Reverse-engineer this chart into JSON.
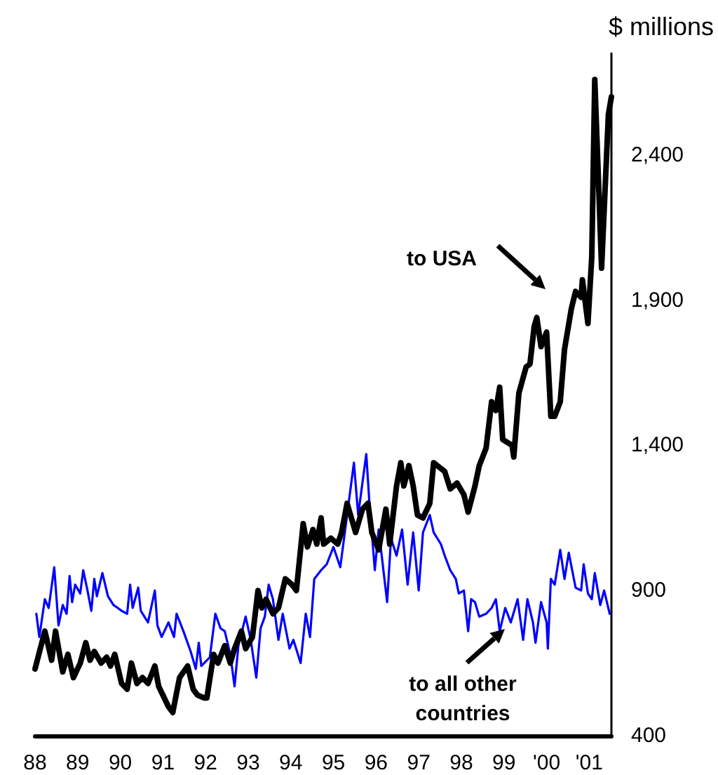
{
  "chart_data": {
    "type": "line",
    "ylabel": "$ millions",
    "marker": "none",
    "line_style": "solid",
    "xlim": [
      1988,
      2001.52
    ],
    "ylim": [
      400,
      2750
    ],
    "xticks": [
      {
        "value": 1988,
        "label": "88"
      },
      {
        "value": 1989,
        "label": "89"
      },
      {
        "value": 1990,
        "label": "90"
      },
      {
        "value": 1991,
        "label": "91"
      },
      {
        "value": 1992,
        "label": "92"
      },
      {
        "value": 1993,
        "label": "93"
      },
      {
        "value": 1994,
        "label": "94"
      },
      {
        "value": 1995,
        "label": "95"
      },
      {
        "value": 1996,
        "label": "96"
      },
      {
        "value": 1997,
        "label": "97"
      },
      {
        "value": 1998,
        "label": "98"
      },
      {
        "value": 1999,
        "label": "99"
      },
      {
        "value": 2000,
        "label": "'00"
      },
      {
        "value": 2001,
        "label": "'01"
      }
    ],
    "yticks": [
      {
        "value": 400,
        "label": "400"
      },
      {
        "value": 900,
        "label": "900"
      },
      {
        "value": 1400,
        "label": "1,400"
      },
      {
        "value": 1900,
        "label": "1,900"
      },
      {
        "value": 2400,
        "label": "2,400"
      }
    ],
    "series": [
      {
        "name": "to USA",
        "color": "#000000",
        "x": [
          1988.0,
          1988.23,
          1988.39,
          1988.48,
          1988.65,
          1988.77,
          1988.9,
          1989.06,
          1989.19,
          1989.29,
          1989.39,
          1989.55,
          1989.68,
          1989.77,
          1989.87,
          1990.03,
          1990.16,
          1990.26,
          1990.39,
          1990.52,
          1990.65,
          1990.81,
          1990.9,
          1991.13,
          1991.23,
          1991.39,
          1991.58,
          1991.71,
          1991.81,
          1991.97,
          1992.03,
          1992.19,
          1992.29,
          1992.45,
          1992.58,
          1992.68,
          1992.84,
          1992.94,
          1993.1,
          1993.23,
          1993.32,
          1993.42,
          1993.58,
          1993.71,
          1993.87,
          1994.03,
          1994.13,
          1994.29,
          1994.39,
          1994.52,
          1994.61,
          1994.71,
          1994.77,
          1994.94,
          1995.1,
          1995.19,
          1995.32,
          1995.42,
          1995.52,
          1995.68,
          1995.81,
          1995.9,
          1996.06,
          1996.23,
          1996.32,
          1996.48,
          1996.58,
          1996.65,
          1996.77,
          1996.87,
          1996.97,
          1997.1,
          1997.26,
          1997.35,
          1997.61,
          1997.74,
          1997.9,
          1998.06,
          1998.16,
          1998.32,
          1998.42,
          1998.58,
          1998.71,
          1998.81,
          1998.9,
          1998.97,
          1999.19,
          1999.23,
          1999.35,
          1999.52,
          1999.61,
          1999.71,
          1999.77,
          1999.87,
          2000.0,
          2000.1,
          2000.19,
          2000.32,
          2000.42,
          2000.58,
          2000.68,
          2000.81,
          2000.84,
          2000.97,
          2001.06,
          2001.13,
          2001.23,
          2001.29,
          2001.45,
          2001.52
        ],
        "values": [
          630,
          760,
          660,
          760,
          620,
          680,
          600,
          650,
          720,
          660,
          690,
          650,
          670,
          640,
          680,
          580,
          560,
          650,
          580,
          600,
          580,
          640,
          570,
          500,
          480,
          600,
          640,
          560,
          540,
          530,
          530,
          680,
          650,
          710,
          650,
          700,
          760,
          700,
          740,
          900,
          840,
          870,
          820,
          840,
          940,
          920,
          900,
          1130,
          1050,
          1110,
          1060,
          1150,
          1060,
          1080,
          1060,
          1100,
          1200,
          1150,
          1100,
          1180,
          1200,
          1100,
          1040,
          1180,
          1060,
          1260,
          1340,
          1260,
          1330,
          1260,
          1160,
          1150,
          1200,
          1340,
          1310,
          1250,
          1270,
          1230,
          1170,
          1260,
          1330,
          1390,
          1550,
          1520,
          1600,
          1420,
          1400,
          1360,
          1580,
          1670,
          1680,
          1810,
          1840,
          1740,
          1790,
          1500,
          1500,
          1550,
          1730,
          1870,
          1930,
          1910,
          1970,
          1820,
          2050,
          2660,
          2260,
          2010,
          2540,
          2600
        ]
      },
      {
        "name": "to all other countries",
        "color": "#0000ff",
        "x": [
          1988.03,
          1988.1,
          1988.23,
          1988.32,
          1988.45,
          1988.55,
          1988.65,
          1988.74,
          1988.81,
          1988.87,
          1988.94,
          1989.06,
          1989.13,
          1989.23,
          1989.32,
          1989.39,
          1989.45,
          1989.58,
          1989.71,
          1989.84,
          1989.94,
          1990.03,
          1990.16,
          1990.23,
          1990.29,
          1990.42,
          1990.48,
          1990.65,
          1990.81,
          1990.87,
          1990.97,
          1991.13,
          1991.26,
          1991.32,
          1991.48,
          1991.65,
          1991.77,
          1991.84,
          1991.9,
          1992.1,
          1992.23,
          1992.35,
          1992.45,
          1992.58,
          1992.68,
          1992.77,
          1992.94,
          1993.06,
          1993.19,
          1993.29,
          1993.39,
          1993.48,
          1993.58,
          1993.71,
          1993.81,
          1993.97,
          1994.06,
          1994.23,
          1994.35,
          1994.45,
          1994.55,
          1994.71,
          1994.84,
          1995.0,
          1995.16,
          1995.32,
          1995.48,
          1995.58,
          1995.77,
          1995.84,
          1995.97,
          1996.06,
          1996.26,
          1996.35,
          1996.48,
          1996.61,
          1996.74,
          1996.87,
          1997.0,
          1997.1,
          1997.26,
          1997.35,
          1997.52,
          1997.61,
          1997.74,
          1997.87,
          1997.94,
          1998.06,
          1998.16,
          1998.23,
          1998.32,
          1998.42,
          1998.58,
          1998.71,
          1998.81,
          1998.9,
          1999.03,
          1999.16,
          1999.32,
          1999.45,
          1999.55,
          1999.68,
          1999.74,
          1999.87,
          2000.0,
          2000.03,
          2000.1,
          2000.19,
          2000.32,
          2000.42,
          2000.52,
          2000.68,
          2000.81,
          2000.87,
          2000.97,
          2001.06,
          2001.13,
          2001.26,
          2001.35,
          2001.48
        ],
        "values": [
          820,
          740,
          870,
          840,
          980,
          780,
          850,
          820,
          950,
          860,
          920,
          890,
          970,
          900,
          830,
          940,
          880,
          960,
          880,
          850,
          840,
          830,
          820,
          920,
          840,
          910,
          830,
          790,
          900,
          780,
          740,
          790,
          740,
          820,
          760,
          690,
          630,
          720,
          640,
          670,
          820,
          770,
          760,
          680,
          570,
          710,
          810,
          730,
          600,
          770,
          810,
          920,
          870,
          730,
          820,
          700,
          730,
          650,
          820,
          740,
          940,
          970,
          990,
          1050,
          980,
          1160,
          1340,
          1160,
          1370,
          1210,
          970,
          1110,
          860,
          1080,
          1020,
          1110,
          920,
          1100,
          900,
          1100,
          1160,
          1100,
          1060,
          1020,
          970,
          940,
          890,
          900,
          760,
          870,
          860,
          810,
          820,
          840,
          870,
          760,
          840,
          790,
          870,
          730,
          870,
          790,
          720,
          860,
          790,
          700,
          940,
          920,
          1040,
          940,
          1030,
          910,
          900,
          990,
          890,
          870,
          960,
          850,
          900,
          820
        ]
      }
    ]
  }
}
